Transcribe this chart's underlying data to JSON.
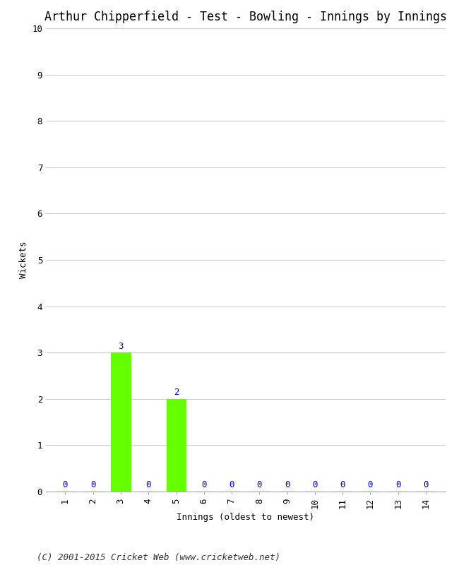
{
  "title": "Arthur Chipperfield - Test - Bowling - Innings by Innings",
  "xlabel": "Innings (oldest to newest)",
  "ylabel": "Wickets",
  "innings": [
    1,
    2,
    3,
    4,
    5,
    6,
    7,
    8,
    9,
    10,
    11,
    12,
    13,
    14
  ],
  "wickets": [
    0,
    0,
    3,
    0,
    2,
    0,
    0,
    0,
    0,
    0,
    0,
    0,
    0,
    0
  ],
  "bar_color": "#66ff00",
  "label_color": "#0000cc",
  "ylim": [
    0,
    10
  ],
  "yticks": [
    0,
    1,
    2,
    3,
    4,
    5,
    6,
    7,
    8,
    9,
    10
  ],
  "xticks": [
    1,
    2,
    3,
    4,
    5,
    6,
    7,
    8,
    9,
    10,
    11,
    12,
    13,
    14
  ],
  "background_color": "#ffffff",
  "grid_color": "#cccccc",
  "footer": "(C) 2001-2015 Cricket Web (www.cricketweb.net)",
  "title_fontsize": 12,
  "label_fontsize": 9,
  "tick_fontsize": 9,
  "footer_fontsize": 9
}
